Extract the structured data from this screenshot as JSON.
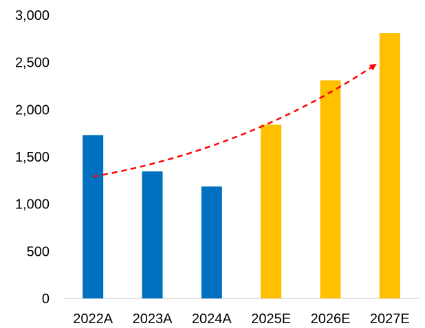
{
  "chart_data": {
    "type": "bar",
    "categories": [
      "2022A",
      "2023A",
      "2024A",
      "2025E",
      "2026E",
      "2027E"
    ],
    "values": [
      1730,
      1345,
      1185,
      1840,
      2310,
      2810
    ],
    "ylim": [
      0,
      3000
    ],
    "yticks": [
      0,
      500,
      1000,
      1500,
      2000,
      2500,
      3000
    ],
    "ytick_labels": [
      "0",
      "500",
      "1,000",
      "1,500",
      "2,000",
      "2,500",
      "3,000"
    ],
    "bar_colors": [
      "#0070C0",
      "#0070C0",
      "#0070C0",
      "#FFC000",
      "#FFC000",
      "#FFC000"
    ],
    "grid": false,
    "legend": "none",
    "trend_arrow": {
      "style": "dashed",
      "color": "#FF0000",
      "start": {
        "category": "2022A",
        "value": 1290
      },
      "end": {
        "category": "2027E",
        "value": 2480
      }
    }
  }
}
